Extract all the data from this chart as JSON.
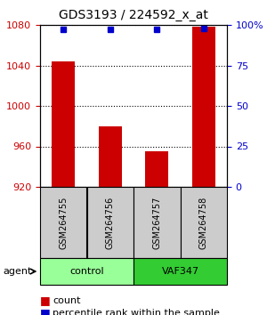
{
  "title": "GDS3193 / 224592_x_at",
  "samples": [
    "GSM264755",
    "GSM264756",
    "GSM264757",
    "GSM264758"
  ],
  "counts": [
    1044,
    980,
    955,
    1078
  ],
  "percentile_ranks": [
    97,
    97,
    97,
    98
  ],
  "ylim_left": [
    920,
    1080
  ],
  "ylim_right": [
    0,
    100
  ],
  "yticks_left": [
    920,
    960,
    1000,
    1040,
    1080
  ],
  "yticks_right": [
    0,
    25,
    50,
    75,
    100
  ],
  "ytick_labels_right": [
    "0",
    "25",
    "50",
    "75",
    "100%"
  ],
  "bar_color": "#cc0000",
  "dot_color": "#0000cc",
  "grid_color": "#000000",
  "groups": [
    {
      "label": "control",
      "samples": [
        0,
        1
      ],
      "color": "#99ff99"
    },
    {
      "label": "VAF347",
      "samples": [
        2,
        3
      ],
      "color": "#33cc33"
    }
  ],
  "agent_label": "agent",
  "legend_count_label": "count",
  "legend_pct_label": "percentile rank within the sample",
  "bg_color": "#ffffff",
  "plot_bg_color": "#ffffff",
  "sample_box_color": "#cccccc",
  "left_ylabel_color": "#cc0000",
  "right_ylabel_color": "#0000cc"
}
